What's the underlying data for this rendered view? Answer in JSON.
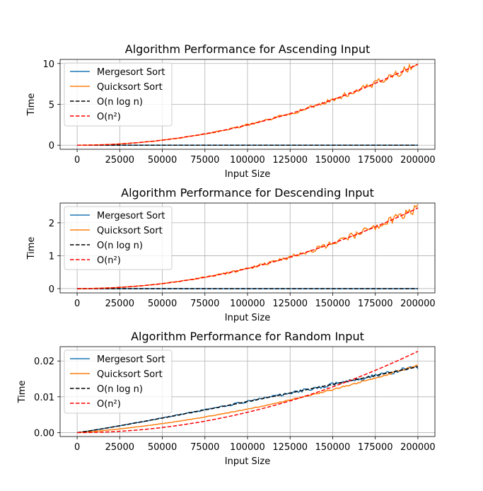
{
  "chart_data": [
    {
      "type": "line",
      "title": "Algorithm Performance for Ascending Input",
      "xlabel": "Input Size",
      "ylabel": "Time",
      "xlim": [
        -10000,
        210000
      ],
      "ylim": [
        -0.5,
        10.5
      ],
      "xticks": [
        0,
        25000,
        50000,
        75000,
        100000,
        125000,
        150000,
        175000,
        200000
      ],
      "yticks": [
        0,
        5,
        10
      ],
      "ytick_labels": [
        "0",
        "5",
        "10"
      ],
      "grid": true,
      "legend_position": "upper left",
      "series": [
        {
          "name": "Mergesort Sort",
          "color": "#1f77b4",
          "style": "solid",
          "model": "nlogn",
          "coef": 0.0,
          "noise": 0.0
        },
        {
          "name": "Quicksort Sort",
          "color": "#ff7f0e",
          "style": "solid",
          "model": "quadratic",
          "coef": 9.9,
          "noise": 0.05
        },
        {
          "name": "O(n log n)",
          "color": "#000000",
          "style": "dashed",
          "model": "nlogn",
          "coef": 0.0,
          "noise": 0.0
        },
        {
          "name": "O(n²)",
          "color": "#ff0000",
          "style": "dashed",
          "model": "quadratic",
          "coef": 9.9,
          "noise": 0.0
        }
      ]
    },
    {
      "type": "line",
      "title": "Algorithm Performance for Descending Input",
      "xlabel": "Input Size",
      "ylabel": "Time",
      "xlim": [
        -10000,
        210000
      ],
      "ylim": [
        -0.13,
        2.6
      ],
      "xticks": [
        0,
        25000,
        50000,
        75000,
        100000,
        125000,
        150000,
        175000,
        200000
      ],
      "yticks": [
        0,
        1,
        2
      ],
      "ytick_labels": [
        "0",
        "1",
        "2"
      ],
      "grid": true,
      "legend_position": "upper left",
      "series": [
        {
          "name": "Mergesort Sort",
          "color": "#1f77b4",
          "style": "solid",
          "model": "nlogn",
          "coef": 0.0,
          "noise": 0.0
        },
        {
          "name": "Quicksort Sort",
          "color": "#ff7f0e",
          "style": "solid",
          "model": "quadratic",
          "coef": 2.45,
          "noise": 0.06
        },
        {
          "name": "O(n log n)",
          "color": "#000000",
          "style": "dashed",
          "model": "nlogn",
          "coef": 0.0,
          "noise": 0.0
        },
        {
          "name": "O(n²)",
          "color": "#ff0000",
          "style": "dashed",
          "model": "quadratic",
          "coef": 2.45,
          "noise": 0.0
        }
      ]
    },
    {
      "type": "line",
      "title": "Algorithm Performance for Random Input",
      "xlabel": "Input Size",
      "ylabel": "Time",
      "xlim": [
        -10000,
        210000
      ],
      "ylim": [
        -0.0011,
        0.024
      ],
      "xticks": [
        0,
        25000,
        50000,
        75000,
        100000,
        125000,
        150000,
        175000,
        200000
      ],
      "yticks": [
        0.0,
        0.01,
        0.02
      ],
      "ytick_labels": [
        "0.00",
        "0.01",
        "0.02"
      ],
      "grid": true,
      "legend_position": "upper left",
      "series": [
        {
          "name": "Mergesort Sort",
          "color": "#1f77b4",
          "style": "solid",
          "model": "nlogn",
          "coef": 0.0184,
          "noise": 0.035
        },
        {
          "name": "Quicksort Sort",
          "color": "#ff7f0e",
          "style": "solid",
          "model": "quicksort_random",
          "coef": 0.0188,
          "noise": 0.015
        },
        {
          "name": "O(n log n)",
          "color": "#000000",
          "style": "dashed",
          "model": "nlogn",
          "coef": 0.0184,
          "noise": 0.0
        },
        {
          "name": "O(n²)",
          "color": "#ff0000",
          "style": "dashed",
          "model": "quadratic",
          "coef": 0.0227,
          "noise": 0.0
        }
      ]
    }
  ]
}
